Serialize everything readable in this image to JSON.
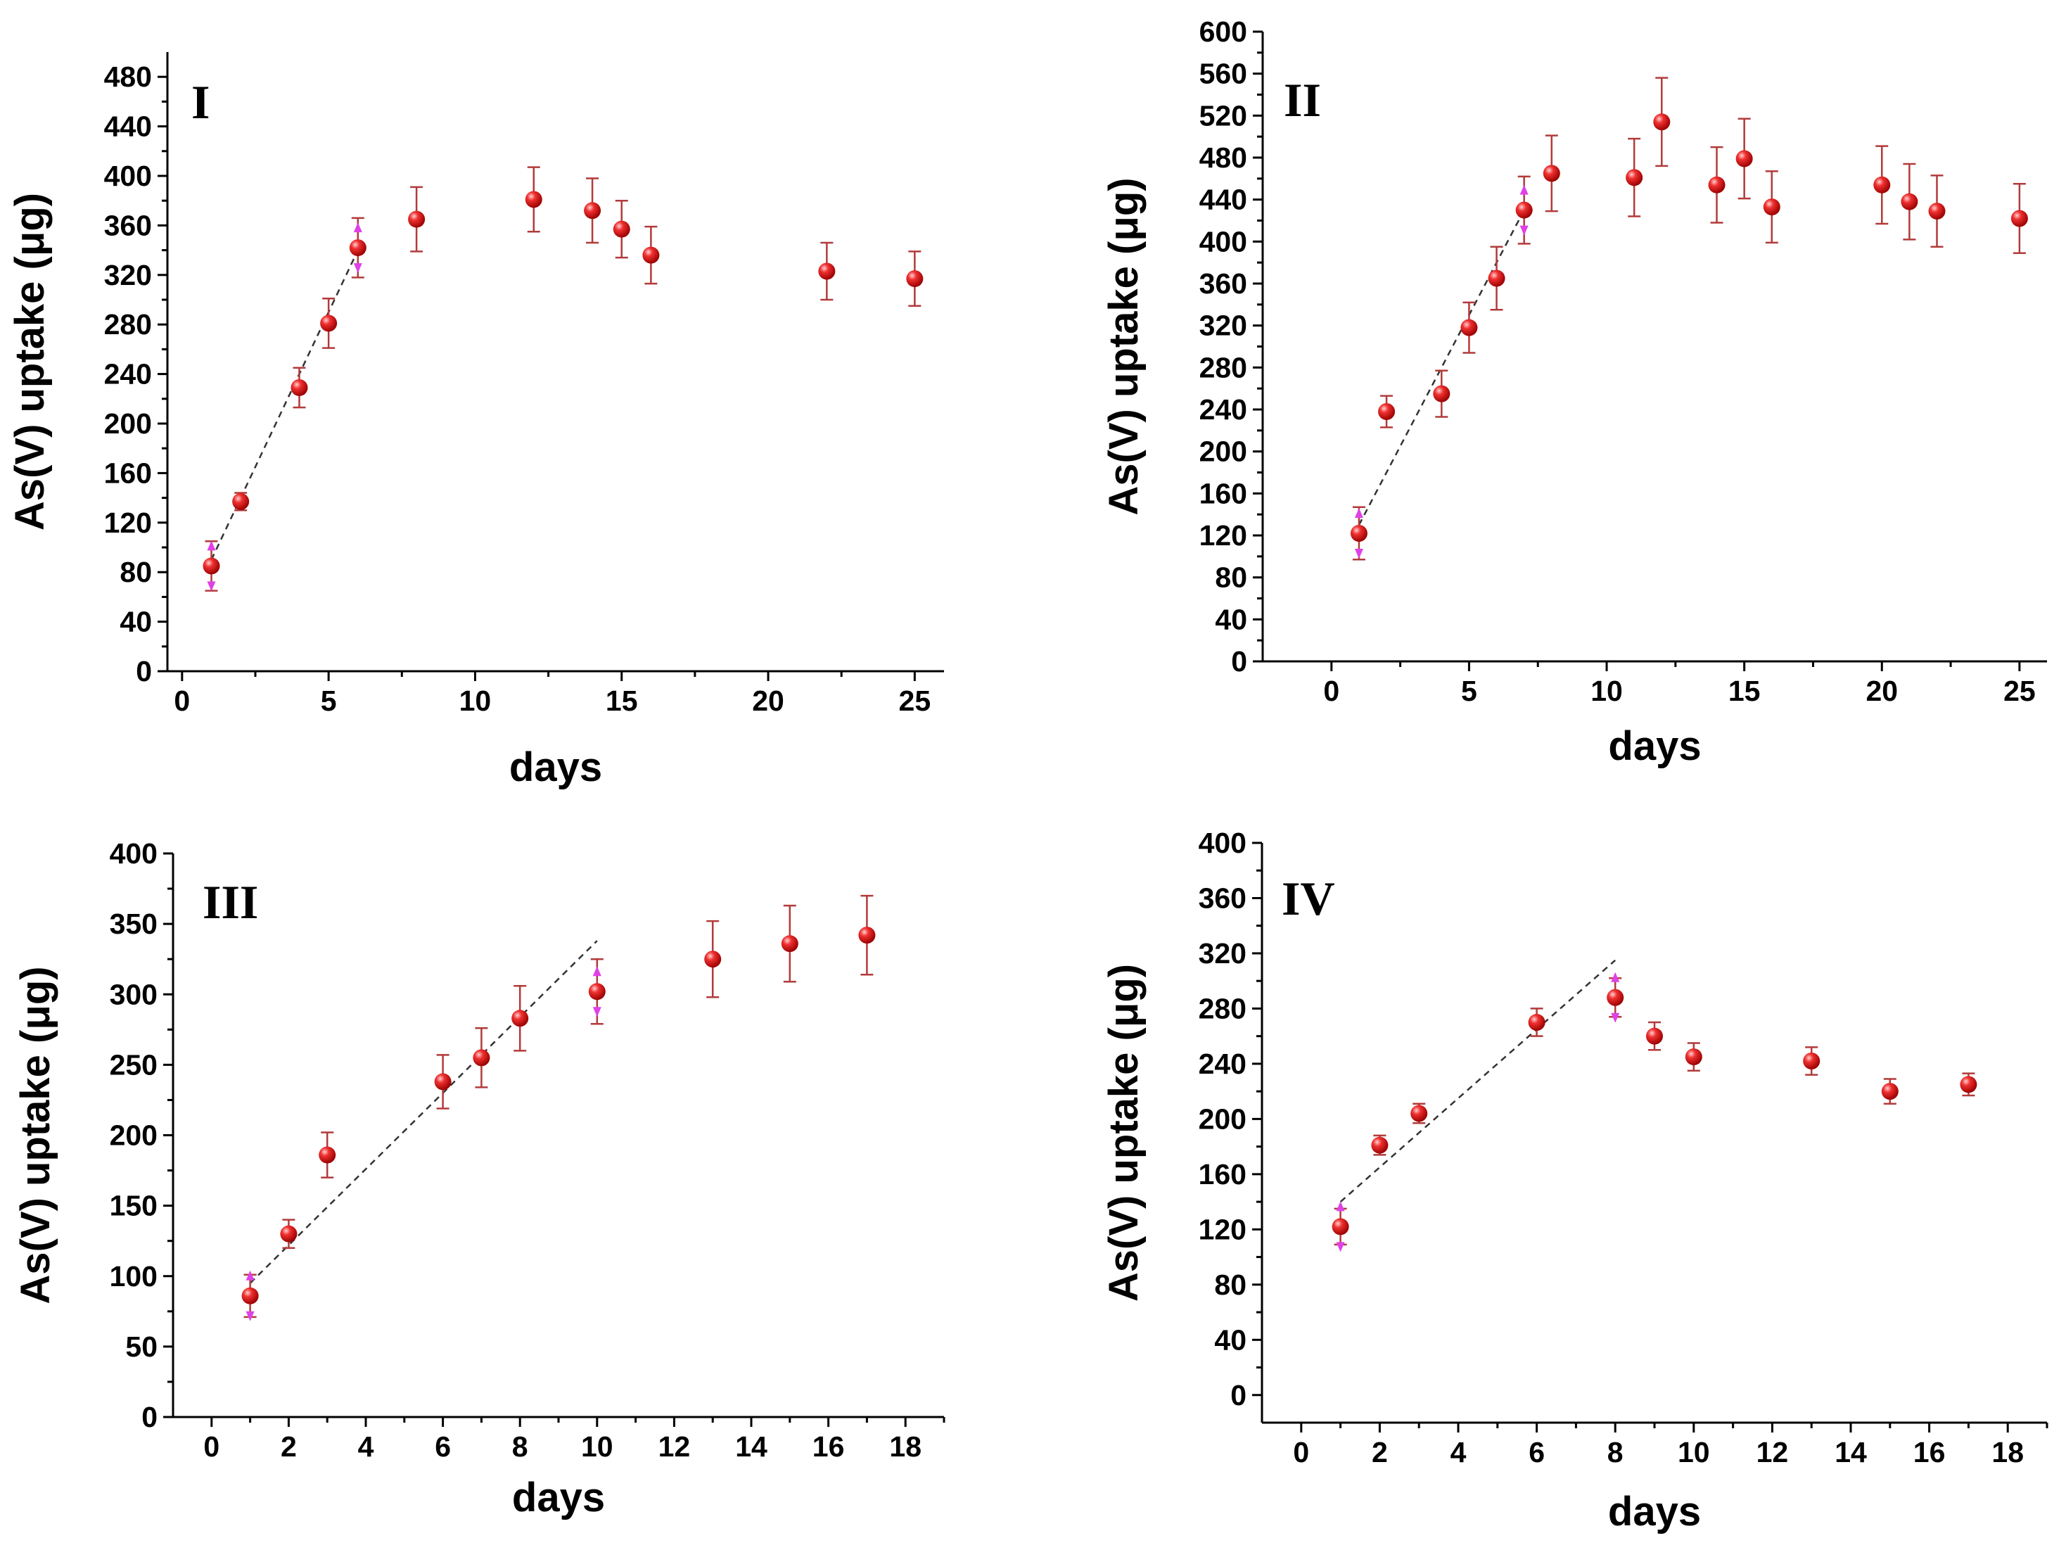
{
  "chart_data": [
    {
      "type": "scatter",
      "title": "I",
      "xlabel": "days",
      "ylabel": "As(V) uptake (μg)",
      "xlim": [
        -0.5,
        26
      ],
      "ylim": [
        0,
        500
      ],
      "xticks": [
        0,
        5,
        10,
        15,
        20,
        25
      ],
      "yticks": [
        0,
        40,
        80,
        120,
        160,
        200,
        240,
        280,
        320,
        360,
        400,
        440,
        480
      ],
      "x": [
        1,
        2,
        4,
        5,
        6,
        8,
        12,
        14,
        15,
        16,
        22,
        25
      ],
      "y": [
        85,
        137,
        229,
        281,
        342,
        365,
        381,
        372,
        357,
        336,
        323,
        317
      ],
      "err": [
        20,
        7,
        16,
        20,
        24,
        26,
        26,
        26,
        23,
        23,
        23,
        22
      ],
      "fit": [
        [
          1,
          90
        ],
        [
          6,
          340
        ]
      ],
      "arrows": [
        1,
        6
      ]
    },
    {
      "type": "scatter",
      "title": "II",
      "xlabel": "days",
      "ylabel": "As(V) uptake (μg)",
      "xlim": [
        -2.5,
        26
      ],
      "ylim": [
        0,
        600
      ],
      "xticks": [
        0,
        5,
        10,
        15,
        20,
        25
      ],
      "yticks": [
        0,
        40,
        80,
        120,
        160,
        200,
        240,
        280,
        320,
        360,
        400,
        440,
        480,
        520,
        560,
        600
      ],
      "x": [
        1,
        2,
        4,
        5,
        6,
        7,
        8,
        11,
        12,
        14,
        15,
        16,
        20,
        21,
        22,
        25
      ],
      "y": [
        122,
        238,
        255,
        318,
        365,
        430,
        465,
        461,
        514,
        454,
        479,
        433,
        454,
        438,
        429,
        422
      ],
      "err": [
        25,
        15,
        22,
        24,
        30,
        32,
        36,
        37,
        42,
        36,
        38,
        34,
        37,
        36,
        34,
        33
      ],
      "fit": [
        [
          1,
          130
        ],
        [
          7,
          430
        ]
      ],
      "arrows": [
        1,
        7
      ]
    },
    {
      "type": "scatter",
      "title": "III",
      "xlabel": "days",
      "ylabel": "As(V) uptake (μg)",
      "xlim": [
        -1,
        19
      ],
      "ylim": [
        0,
        400
      ],
      "xticks": [
        0,
        2,
        4,
        6,
        8,
        10,
        12,
        14,
        16,
        18
      ],
      "yticks": [
        0,
        50,
        100,
        150,
        200,
        250,
        300,
        350,
        400
      ],
      "x": [
        1,
        2,
        3,
        6,
        7,
        8,
        10,
        13,
        15,
        17
      ],
      "y": [
        86,
        130,
        186,
        238,
        255,
        283,
        302,
        325,
        336,
        342
      ],
      "err": [
        15,
        10,
        16,
        19,
        21,
        23,
        23,
        27,
        27,
        28
      ],
      "fit": [
        [
          1,
          95
        ],
        [
          10,
          338
        ]
      ],
      "arrows": [
        1,
        10
      ]
    },
    {
      "type": "scatter",
      "title": "IV",
      "xlabel": "days",
      "ylabel": "As(V) uptake (μg)",
      "xlim": [
        -1,
        19
      ],
      "ylim": [
        -20,
        400
      ],
      "xticks": [
        0,
        2,
        4,
        6,
        8,
        10,
        12,
        14,
        16,
        18
      ],
      "yticks": [
        0,
        40,
        80,
        120,
        160,
        200,
        240,
        280,
        320,
        360,
        400
      ],
      "x": [
        1,
        2,
        3,
        6,
        8,
        9,
        10,
        13,
        15,
        17
      ],
      "y": [
        122,
        181,
        204,
        270,
        288,
        260,
        245,
        242,
        220,
        225
      ],
      "err": [
        13,
        7,
        7,
        10,
        14,
        10,
        10,
        10,
        9,
        8
      ],
      "fit": [
        [
          1,
          140
        ],
        [
          8,
          315
        ]
      ],
      "arrows": [
        1,
        8
      ]
    }
  ]
}
